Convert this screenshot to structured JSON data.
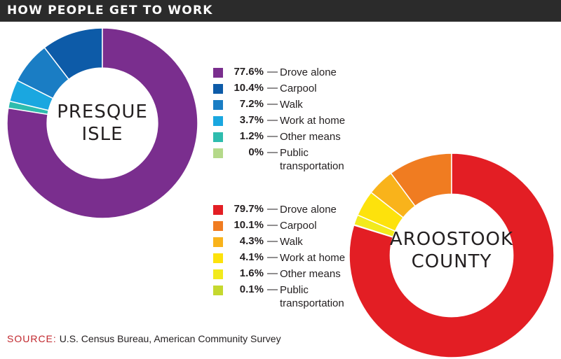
{
  "header": {
    "title": "HOW PEOPLE GET TO WORK"
  },
  "source": {
    "key": "SOURCE:",
    "text": "U.S. Census Bureau, American Community Survey"
  },
  "chart_data": [
    {
      "type": "pie",
      "title": "PRESQUE ISLE",
      "title_lines": [
        "PRESQUE",
        "ISLE"
      ],
      "donut": true,
      "categories": [
        "Drove alone",
        "Carpool",
        "Walk",
        "Work at home",
        "Other means",
        "Public transportation"
      ],
      "values": [
        77.6,
        10.4,
        7.2,
        3.7,
        1.2,
        0
      ],
      "labels": [
        "77.6%",
        "10.4%",
        "7.2%",
        "3.7%",
        "1.2%",
        "0%"
      ],
      "legend_labels": [
        "Drove alone",
        "Carpool",
        "Walk",
        "Work at home",
        "Other means",
        [
          "Public",
          "transportation"
        ]
      ],
      "colors": [
        "#7a2e8e",
        "#0d5ba8",
        "#1a7dc4",
        "#1aa7e0",
        "#2ebcae",
        "#b5d98a"
      ]
    },
    {
      "type": "pie",
      "title": "AROOSTOOK COUNTY",
      "title_lines": [
        "AROOSTOOK",
        "COUNTY"
      ],
      "donut": true,
      "categories": [
        "Drove alone",
        "Carpool",
        "Walk",
        "Work at home",
        "Other means",
        "Public transportation"
      ],
      "values": [
        79.7,
        10.1,
        4.3,
        4.1,
        1.6,
        0.1
      ],
      "labels": [
        "79.7%",
        "10.1%",
        "4.3%",
        "4.1%",
        "1.6%",
        "0.1%"
      ],
      "legend_labels": [
        "Drove alone",
        "Carpool",
        "Walk",
        "Work at home",
        "Other means",
        [
          "Public",
          "transportation"
        ]
      ],
      "colors": [
        "#e31e24",
        "#f07c21",
        "#f9b31b",
        "#fde20c",
        "#f2ea1d",
        "#c5d82e"
      ]
    }
  ]
}
